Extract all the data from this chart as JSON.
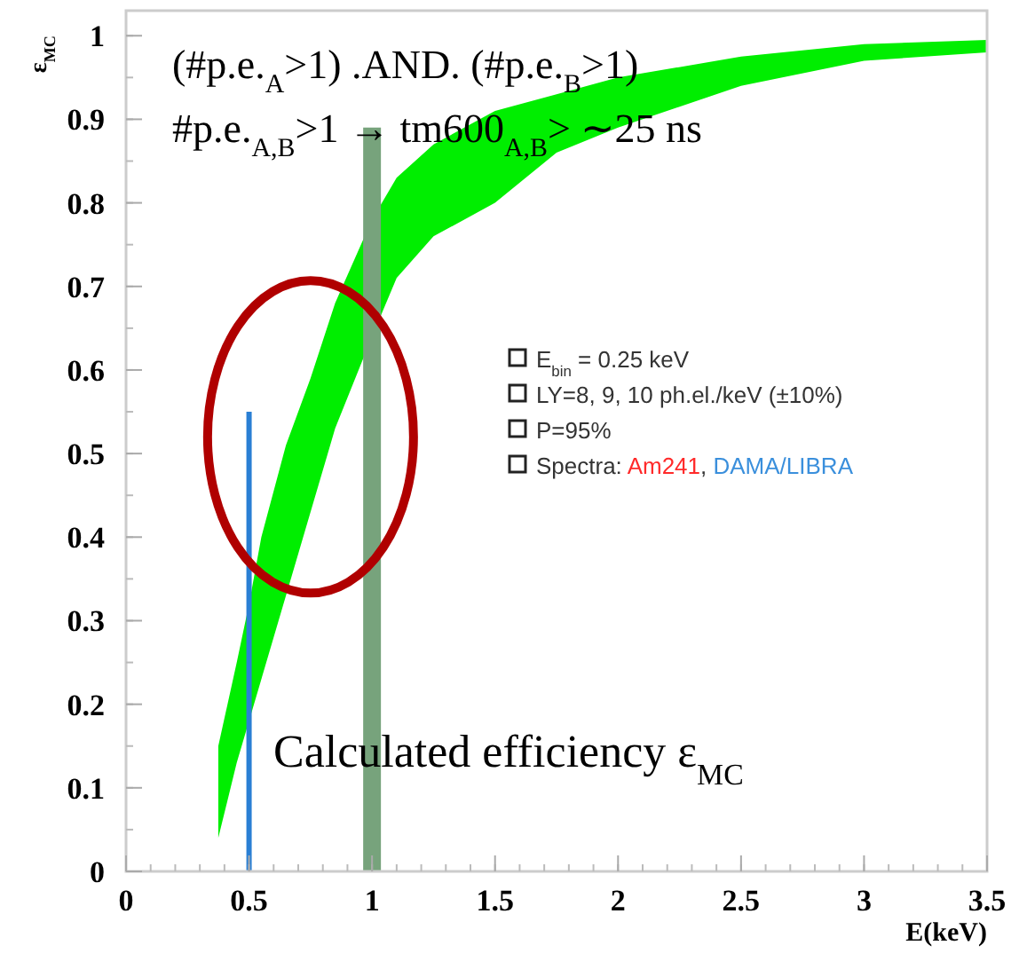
{
  "chart_data": {
    "type": "area",
    "xlabel": "E(keV)",
    "ylabel": "ε$_{MC}$",
    "xlim": [
      0,
      3.5
    ],
    "ylim": [
      0,
      1.03
    ],
    "xticks": [
      0,
      0.5,
      1,
      1.5,
      2,
      2.5,
      3,
      3.5
    ],
    "yticks": [
      0,
      0.1,
      0.2,
      0.3,
      0.4,
      0.5,
      0.6,
      0.7,
      0.8,
      0.9,
      1
    ],
    "grid": false,
    "series": [
      {
        "color": "#00ee00",
        "values": [
          null,
          null,
          null,
          null,
          null,
          null,
          null,
          null,
          null,
          null,
          null,
          null,
          null,
          null,
          null,
          null
        ],
        "x": [
          0.375,
          0.45,
          0.5,
          0.55,
          0.65,
          0.75,
          0.85,
          1,
          1.1,
          1.25,
          1.5,
          1.75,
          2,
          2.5,
          3,
          3.5
        ],
        "upper": [
          0.15,
          0.25,
          0.32,
          0.4,
          0.51,
          0.59,
          0.68,
          0.78,
          0.83,
          0.87,
          0.91,
          0.93,
          0.95,
          0.975,
          0.99,
          0.995
        ],
        "lower": [
          0.04,
          0.13,
          0.18,
          0.23,
          0.33,
          0.43,
          0.53,
          0.64,
          0.71,
          0.76,
          0.8,
          0.86,
          0.89,
          0.94,
          0.97,
          0.98
        ]
      },
      {
        "type": "line",
        "color": "#2a7fd4",
        "x": [
          0.5,
          0.5
        ],
        "values": [
          0,
          0.55
        ]
      },
      {
        "type": "line",
        "color": "#77a37c",
        "x": [
          1,
          1
        ],
        "values": [
          0,
          0.89
        ]
      }
    ],
    "annotations": [
      "(#p.e.$_{A}$>1) .AND. (#p.e.$_{B}$>1)",
      "#p.e.$_{A,B}$>1 → tm600$_{A,B}$> ∼25 ns",
      "Calculated efficiency ε$_{MC}$",
      "E$_{bin}$ = 0.25 keV",
      "LY=8, 9, 10 ph.el./keV (±10%)",
      "P=95%",
      "Spectra: Am241, DAMA/LIBRA"
    ]
  }
}
